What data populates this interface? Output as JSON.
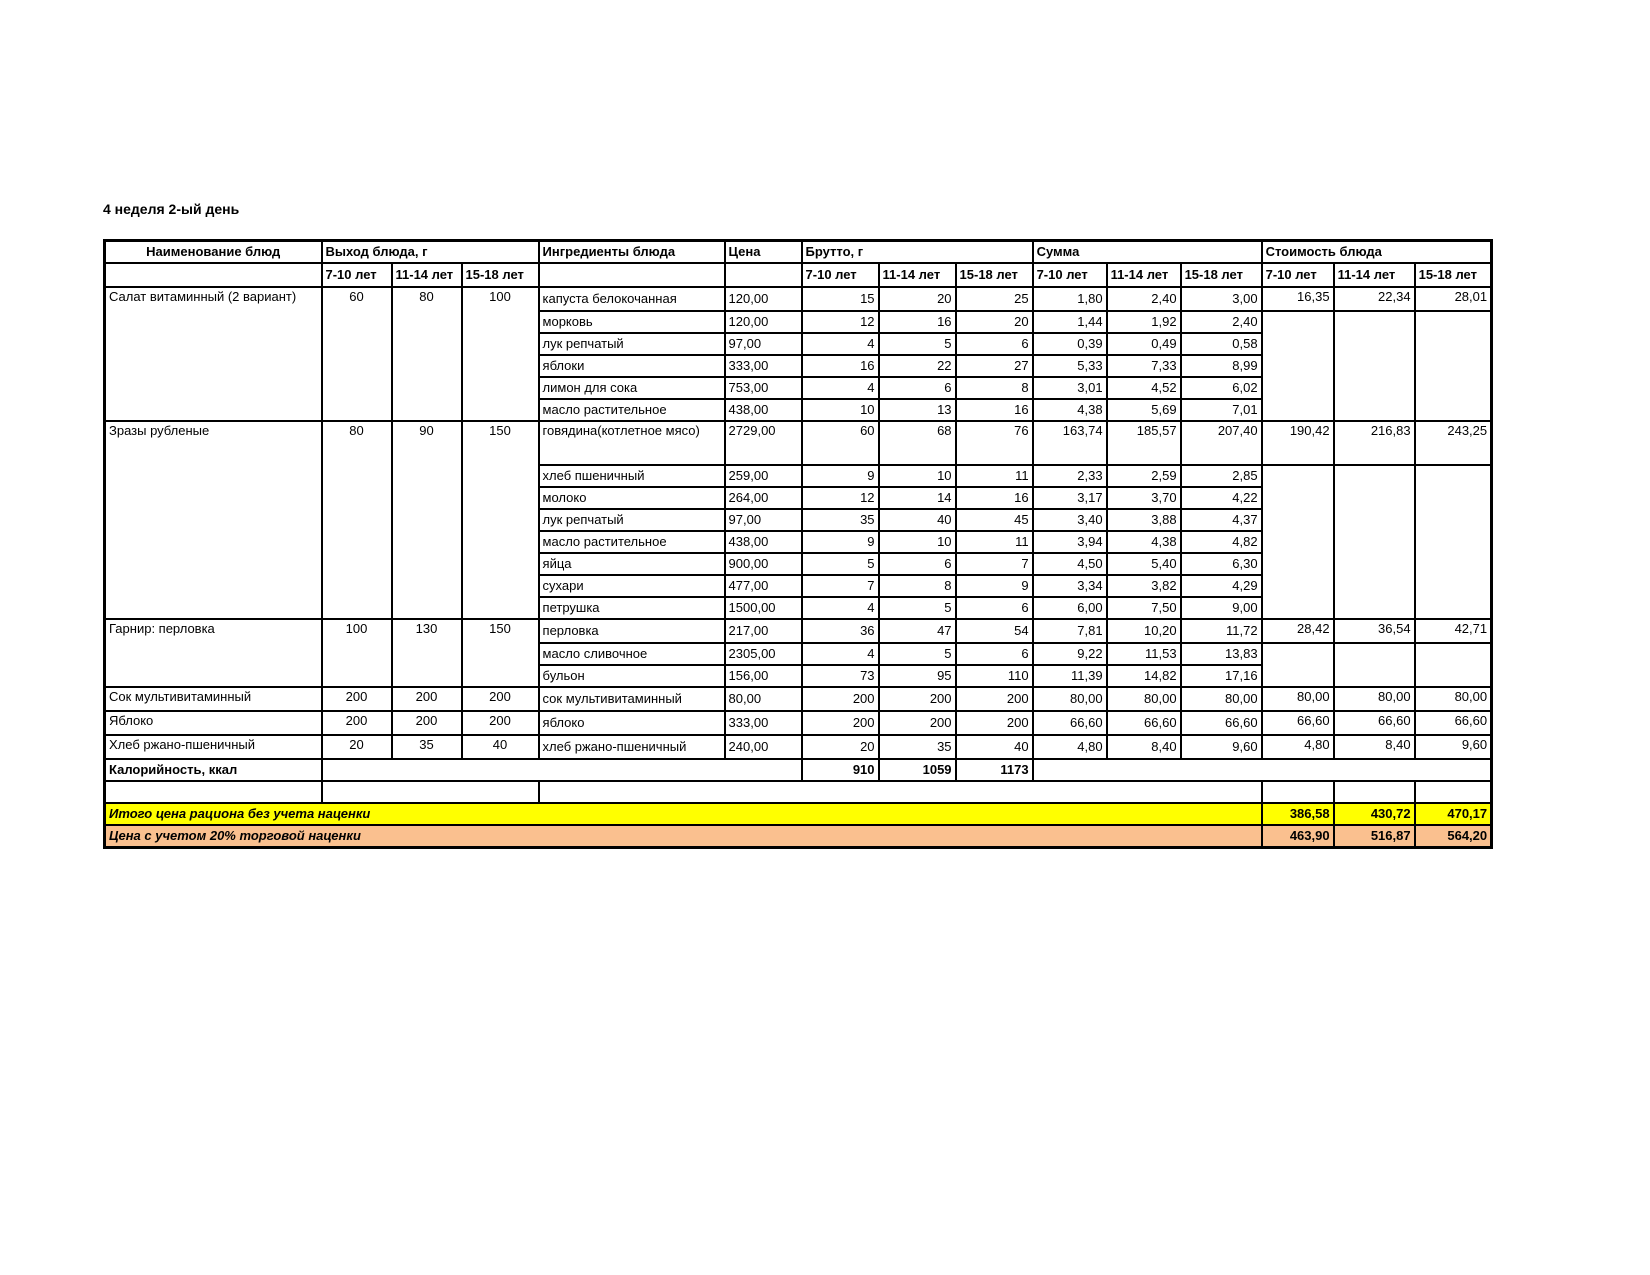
{
  "title": "4 неделя 2-ый день",
  "colors": {
    "total_row_1_bg": "#FFFF00",
    "total_row_2_bg": "#FAC08F",
    "grid": "#000000"
  },
  "table": {
    "headers": {
      "name": "Наименование блюд",
      "yield": "Выход блюда, г",
      "ingredients": "Ингредиенты блюда",
      "price": "Цена",
      "gross": "Брутто, г",
      "sum": "Сумма",
      "cost": "Стоимость блюда",
      "age_groups": [
        "7-10 лет",
        "11-14 лет",
        "15-18 лет"
      ]
    },
    "dishes": [
      {
        "name": "Салат витаминный (2 вариант)",
        "yield": [
          "60",
          "80",
          "100"
        ],
        "cost": [
          "16,35",
          "22,34",
          "28,01"
        ],
        "ingredients": [
          {
            "name": "капуста белокочанная",
            "price": "120,00",
            "gross": [
              "15",
              "20",
              "25"
            ],
            "sum": [
              "1,80",
              "2,40",
              "3,00"
            ]
          },
          {
            "name": "морковь",
            "price": "120,00",
            "gross": [
              "12",
              "16",
              "20"
            ],
            "sum": [
              "1,44",
              "1,92",
              "2,40"
            ]
          },
          {
            "name": "лук репчатый",
            "price": "97,00",
            "gross": [
              "4",
              "5",
              "6"
            ],
            "sum": [
              "0,39",
              "0,49",
              "0,58"
            ]
          },
          {
            "name": "яблоки",
            "price": "333,00",
            "gross": [
              "16",
              "22",
              "27"
            ],
            "sum": [
              "5,33",
              "7,33",
              "8,99"
            ]
          },
          {
            "name": "лимон для сока",
            "price": "753,00",
            "gross": [
              "4",
              "6",
              "8"
            ],
            "sum": [
              "3,01",
              "4,52",
              "6,02"
            ]
          },
          {
            "name": "масло растительное",
            "price": "438,00",
            "gross": [
              "10",
              "13",
              "16"
            ],
            "sum": [
              "4,38",
              "5,69",
              "7,01"
            ]
          }
        ]
      },
      {
        "name": "Зразы рубленые",
        "yield": [
          "80",
          "90",
          "150"
        ],
        "cost": [
          "190,42",
          "216,83",
          "243,25"
        ],
        "ingredients": [
          {
            "name": "говядина(котлетное мясо)",
            "price": "2729,00",
            "gross": [
              "60",
              "68",
              "76"
            ],
            "sum": [
              "163,74",
              "185,57",
              "207,40"
            ]
          },
          {
            "name": "хлеб пшеничный",
            "price": "259,00",
            "gross": [
              "9",
              "10",
              "11"
            ],
            "sum": [
              "2,33",
              "2,59",
              "2,85"
            ]
          },
          {
            "name": "молоко",
            "price": "264,00",
            "gross": [
              "12",
              "14",
              "16"
            ],
            "sum": [
              "3,17",
              "3,70",
              "4,22"
            ]
          },
          {
            "name": "лук репчатый",
            "price": "97,00",
            "gross": [
              "35",
              "40",
              "45"
            ],
            "sum": [
              "3,40",
              "3,88",
              "4,37"
            ]
          },
          {
            "name": "масло растительное",
            "price": "438,00",
            "gross": [
              "9",
              "10",
              "11"
            ],
            "sum": [
              "3,94",
              "4,38",
              "4,82"
            ]
          },
          {
            "name": "яйца",
            "price": "900,00",
            "gross": [
              "5",
              "6",
              "7"
            ],
            "sum": [
              "4,50",
              "5,40",
              "6,30"
            ]
          },
          {
            "name": "сухари",
            "price": "477,00",
            "gross": [
              "7",
              "8",
              "9"
            ],
            "sum": [
              "3,34",
              "3,82",
              "4,29"
            ]
          },
          {
            "name": "петрушка",
            "price": "1500,00",
            "gross": [
              "4",
              "5",
              "6"
            ],
            "sum": [
              "6,00",
              "7,50",
              "9,00"
            ]
          }
        ]
      },
      {
        "name": "Гарнир: перловка",
        "yield": [
          "100",
          "130",
          "150"
        ],
        "cost": [
          "28,42",
          "36,54",
          "42,71"
        ],
        "ingredients": [
          {
            "name": "перловка",
            "price": "217,00",
            "gross": [
              "36",
              "47",
              "54"
            ],
            "sum": [
              "7,81",
              "10,20",
              "11,72"
            ]
          },
          {
            "name": "масло сливочное",
            "price": "2305,00",
            "gross": [
              "4",
              "5",
              "6"
            ],
            "sum": [
              "9,22",
              "11,53",
              "13,83"
            ]
          },
          {
            "name": "бульон",
            "price": "156,00",
            "gross": [
              "73",
              "95",
              "110"
            ],
            "sum": [
              "11,39",
              "14,82",
              "17,16"
            ]
          }
        ]
      },
      {
        "name": "Сок мультивитаминный",
        "yield": [
          "200",
          "200",
          "200"
        ],
        "cost": [
          "80,00",
          "80,00",
          "80,00"
        ],
        "ingredients": [
          {
            "name": "сок мультивитаминный",
            "price": "80,00",
            "gross": [
              "200",
              "200",
              "200"
            ],
            "sum": [
              "80,00",
              "80,00",
              "80,00"
            ]
          }
        ]
      },
      {
        "name": "Яблоко",
        "yield": [
          "200",
          "200",
          "200"
        ],
        "cost": [
          "66,60",
          "66,60",
          "66,60"
        ],
        "ingredients": [
          {
            "name": "яблоко",
            "price": "333,00",
            "gross": [
              "200",
              "200",
              "200"
            ],
            "sum": [
              "66,60",
              "66,60",
              "66,60"
            ]
          }
        ]
      },
      {
        "name": "Хлеб ржано-пшеничный",
        "yield": [
          "20",
          "35",
          "40"
        ],
        "cost": [
          "4,80",
          "8,40",
          "9,60"
        ],
        "ingredients": [
          {
            "name": "хлеб ржано-пшеничный",
            "price": "240,00",
            "gross": [
              "20",
              "35",
              "40"
            ],
            "sum": [
              "4,80",
              "8,40",
              "9,60"
            ]
          }
        ]
      }
    ],
    "calories_row": {
      "label": "Калорийность, ккал",
      "values": [
        "910",
        "1059",
        "1173"
      ]
    },
    "totals": [
      {
        "label": "Итого цена рациона без учета наценки",
        "values": [
          "386,58",
          "430,72",
          "470,17"
        ]
      },
      {
        "label": "Цена с учетом 20% торговой наценки",
        "values": [
          "463,90",
          "516,87",
          "564,20"
        ]
      }
    ]
  }
}
